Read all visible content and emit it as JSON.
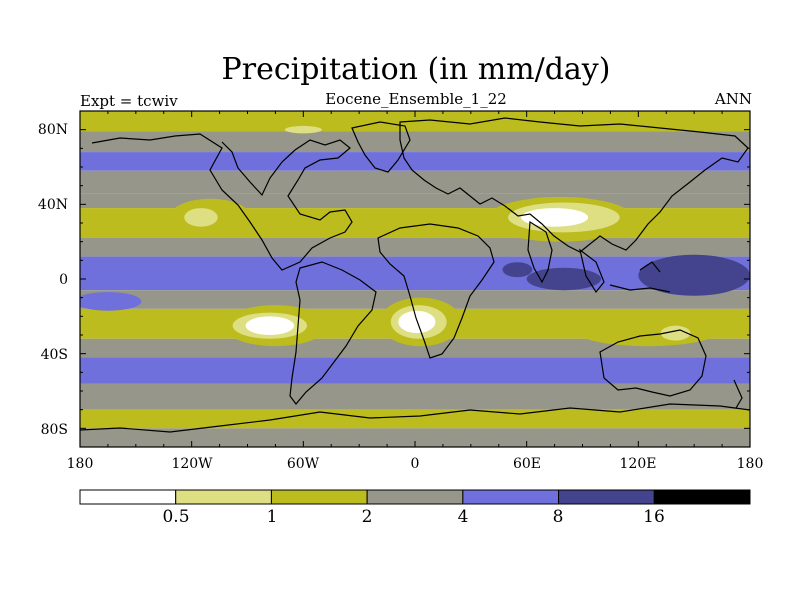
{
  "title": "Precipitation (in mm/day)",
  "left_label": "Expt = tcwiv",
  "center_label": "Eocene_Ensemble_1_22",
  "right_label": "ANN",
  "chart_data": {
    "type": "heatmap",
    "variable": "Precipitation",
    "units": "mm/day",
    "lon_range": [
      -180,
      180
    ],
    "lat_range": [
      -90,
      90
    ],
    "lon_ticks": [
      "180",
      "120W",
      "60W",
      "0",
      "60E",
      "120E",
      "180"
    ],
    "lat_ticks": [
      "80N",
      "40N",
      "0",
      "40S",
      "80S"
    ],
    "contour_levels": [
      "0.5",
      "1",
      "2",
      "4",
      "8",
      "16"
    ],
    "colors": [
      "#ffffff",
      "#dede82",
      "#bcbc1e",
      "#96968a",
      "#7070dc",
      "#44448e",
      "#000000"
    ],
    "bands": [
      {
        "lat_south": 79,
        "lat_north": 90,
        "category": 2
      },
      {
        "lat_south": 68,
        "lat_north": 79,
        "category": 3
      },
      {
        "lat_south": 58,
        "lat_north": 68,
        "category": 4
      },
      {
        "lat_south": 46,
        "lat_north": 58,
        "category": 3
      },
      {
        "lat_south": 38,
        "lat_north": 46,
        "category": 3
      },
      {
        "lat_south": 22,
        "lat_north": 38,
        "category": 2
      },
      {
        "lat_south": 12,
        "lat_north": 22,
        "category": 3
      },
      {
        "lat_south": -6,
        "lat_north": 12,
        "category": 4
      },
      {
        "lat_south": -16,
        "lat_north": -6,
        "category": 3
      },
      {
        "lat_south": -32,
        "lat_north": -16,
        "category": 2
      },
      {
        "lat_south": -42,
        "lat_north": -32,
        "category": 3
      },
      {
        "lat_south": -56,
        "lat_north": -42,
        "category": 4
      },
      {
        "lat_south": -70,
        "lat_north": -56,
        "category": 3
      },
      {
        "lat_south": -80,
        "lat_north": -70,
        "category": 2
      },
      {
        "lat_south": -90,
        "lat_north": -80,
        "category": 3
      }
    ],
    "regions": [
      {
        "name": "west-asia-dry",
        "lat": 32,
        "lon": 78,
        "rx_deg": 40,
        "ry_deg": 12,
        "category": 2
      },
      {
        "name": "west-asia-drier",
        "lat": 33,
        "lon": 80,
        "rx_deg": 30,
        "ry_deg": 8,
        "category": 1
      },
      {
        "name": "west-asia-driest",
        "lat": 33,
        "lon": 75,
        "rx_deg": 18,
        "ry_deg": 5,
        "category": 0
      },
      {
        "name": "north-america-dry",
        "lat": 33,
        "lon": -110,
        "rx_deg": 22,
        "ry_deg": 10,
        "category": 2
      },
      {
        "name": "north-america-drier",
        "lat": 33,
        "lon": -115,
        "rx_deg": 9,
        "ry_deg": 5,
        "category": 1
      },
      {
        "name": "south-pacific-dry",
        "lat": -25,
        "lon": -75,
        "rx_deg": 28,
        "ry_deg": 11,
        "category": 2
      },
      {
        "name": "south-pacific-drier",
        "lat": -25,
        "lon": -78,
        "rx_deg": 20,
        "ry_deg": 7,
        "category": 1
      },
      {
        "name": "south-pacific-driest",
        "lat": -25,
        "lon": -78,
        "rx_deg": 13,
        "ry_deg": 5,
        "category": 0
      },
      {
        "name": "south-atlantic-dry",
        "lat": -23,
        "lon": 3,
        "rx_deg": 22,
        "ry_deg": 13,
        "category": 2
      },
      {
        "name": "south-atlantic-drier",
        "lat": -23,
        "lon": 2,
        "rx_deg": 15,
        "ry_deg": 9,
        "category": 1
      },
      {
        "name": "south-atlantic-driest",
        "lat": -23,
        "lon": 1,
        "rx_deg": 10,
        "ry_deg": 6,
        "category": 0
      },
      {
        "name": "australia-dry",
        "lat": -27,
        "lon": 125,
        "rx_deg": 40,
        "ry_deg": 9,
        "category": 2
      },
      {
        "name": "australia-drier",
        "lat": -29,
        "lon": 140,
        "rx_deg": 8,
        "ry_deg": 4,
        "category": 1
      },
      {
        "name": "north-polar-dry",
        "lat": 80,
        "lon": -60,
        "rx_deg": 10,
        "ry_deg": 2,
        "category": 1
      },
      {
        "name": "indian-ocean-wet",
        "lat": 0,
        "lon": 80,
        "rx_deg": 20,
        "ry_deg": 6,
        "category": 5
      },
      {
        "name": "west-pacific-wet",
        "lat": 2,
        "lon": 150,
        "rx_deg": 30,
        "ry_deg": 11,
        "category": 5
      },
      {
        "name": "arabian-wet",
        "lat": 5,
        "lon": 55,
        "rx_deg": 8,
        "ry_deg": 4,
        "category": 5
      },
      {
        "name": "tropical-pacific-wet",
        "lat": 5,
        "lon": -150,
        "rx_deg": 45,
        "ry_deg": 6,
        "category": 4
      },
      {
        "name": "south-pacific-convergence",
        "lat": -12,
        "lon": -165,
        "rx_deg": 18,
        "ry_deg": 5,
        "category": 4
      }
    ]
  }
}
